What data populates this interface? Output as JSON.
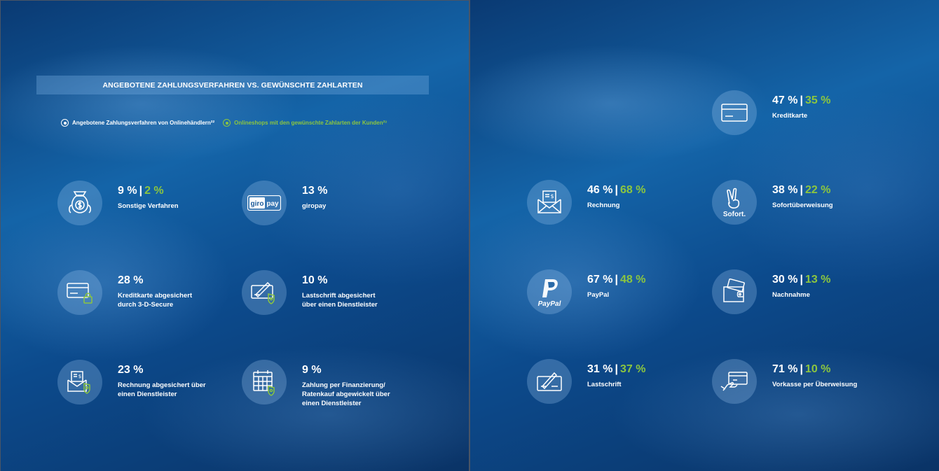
{
  "title": "ANGEBOTENE ZAHLUNGSVERFAHREN VS. GEWÜNSCHTE ZAHLARTEN",
  "legend": {
    "offered": "Angebotene Zahlungsverfahren von Onlinehändlern²²",
    "wanted": "Onlineshops mit den gewünschte Zahlarten der Kunden²³",
    "colors": {
      "offered": "#ffffff",
      "wanted": "#8cc63f"
    }
  },
  "left_items": [
    {
      "icon": "money-bag-icon",
      "offered": "9 %",
      "wanted": "2 %",
      "label": "Sonstige Verfahren"
    },
    {
      "icon": "giropay-logo-icon",
      "offered": "13 %",
      "wanted": "",
      "label": "giropay"
    },
    {
      "icon": "credit-card-lock-icon",
      "offered": "28 %",
      "wanted": "",
      "label": "Kreditkarte abgesichert\ndurch 3-D-Secure"
    },
    {
      "icon": "cheque-shield-icon",
      "offered": "10 %",
      "wanted": "",
      "label": "Lastschrift abgesichert\nüber einen Dienstleister"
    },
    {
      "icon": "invoice-shield-icon",
      "offered": "23 %",
      "wanted": "",
      "label": "Rechnung abgesichert über\neinen Dienstleister"
    },
    {
      "icon": "calendar-shield-icon",
      "offered": "9 %",
      "wanted": "",
      "label": "Zahlung per Finanzierung/\nRatenkauf abgewickelt über\neinen Dienstleister"
    }
  ],
  "right_items": [
    {
      "icon": "credit-card-icon",
      "offered": "47 %",
      "wanted": "35 %",
      "label": "Kreditkarte"
    },
    {
      "icon": "invoice-envelope-icon",
      "offered": "46 %",
      "wanted": "68 %",
      "label": "Rechnung"
    },
    {
      "icon": "sofort-logo-icon",
      "offered": "38 %",
      "wanted": "22 %",
      "label": "Sofortüberweisung"
    },
    {
      "icon": "paypal-logo-icon",
      "offered": "67 %",
      "wanted": "48 %",
      "label": "PayPal"
    },
    {
      "icon": "wallet-icon",
      "offered": "30 %",
      "wanted": "13 %",
      "label": "Nachnahme"
    },
    {
      "icon": "cheque-pen-icon",
      "offered": "31 %",
      "wanted": "37 %",
      "label": "Lastschrift"
    },
    {
      "icon": "bank-transfer-icon",
      "offered": "71 %",
      "wanted": "10 %",
      "label": "Vorkasse per Überweisung"
    }
  ],
  "logos": {
    "giro": "giro",
    "pay": "pay",
    "sofort": "Sofort.",
    "paypal": "PayPal"
  }
}
